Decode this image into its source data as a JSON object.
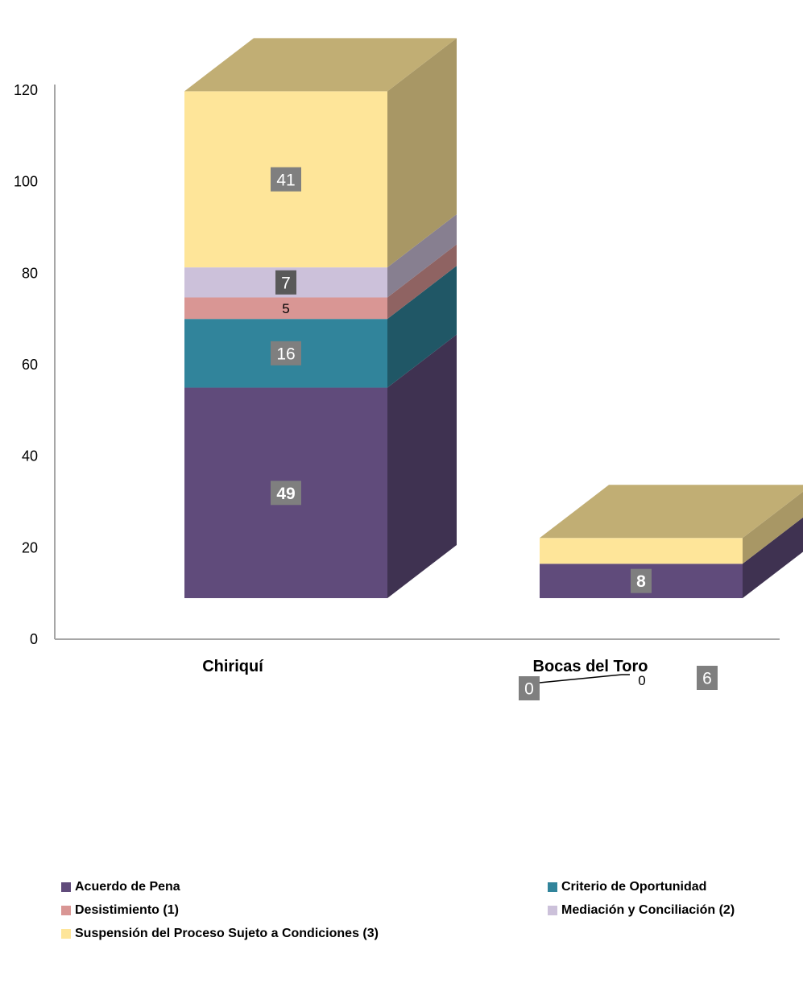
{
  "chart_data": {
    "type": "bar",
    "stacked": true,
    "three_d": true,
    "categories": [
      "Chiriquí",
      "Bocas del Toro"
    ],
    "series": [
      {
        "name": "Acuerdo de Pena",
        "values": [
          49,
          8
        ],
        "color": "#604b7b"
      },
      {
        "name": "Criterio de Oportunidad",
        "values": [
          16,
          0
        ],
        "color": "#31849b"
      },
      {
        "name": "Desistimiento (1)",
        "values": [
          5,
          0
        ],
        "color": "#d99694"
      },
      {
        "name": "Mediación y Conciliación (2)",
        "values": [
          7,
          0
        ],
        "color": "#ccc1da"
      },
      {
        "name": "Suspensión del Proceso Sujeto a Condiciones (3)",
        "values": [
          41,
          6
        ],
        "color": "#fee599"
      }
    ],
    "data_labels": [
      {
        "category": 0,
        "series": 0,
        "text": "49",
        "style": "boxed-bold"
      },
      {
        "category": 0,
        "series": 1,
        "text": "16",
        "style": "boxed"
      },
      {
        "category": 0,
        "series": 2,
        "text": "5",
        "style": "plain"
      },
      {
        "category": 0,
        "series": 3,
        "text": "7",
        "style": "boxed-dark"
      },
      {
        "category": 0,
        "series": 4,
        "text": "41",
        "style": "boxed"
      },
      {
        "category": 1,
        "series": 0,
        "text": "8",
        "style": "boxed-bold"
      },
      {
        "category": 1,
        "series": 1,
        "text": "0",
        "style": "boxed"
      },
      {
        "category": 1,
        "series": 2,
        "text": "0",
        "style": "plain"
      },
      {
        "category": 1,
        "series": 4,
        "text": "6",
        "style": "boxed"
      }
    ],
    "yticks": [
      0,
      20,
      40,
      60,
      80,
      100,
      120
    ],
    "ylim": [
      0,
      120
    ],
    "grid": false,
    "legend": "bottom"
  }
}
